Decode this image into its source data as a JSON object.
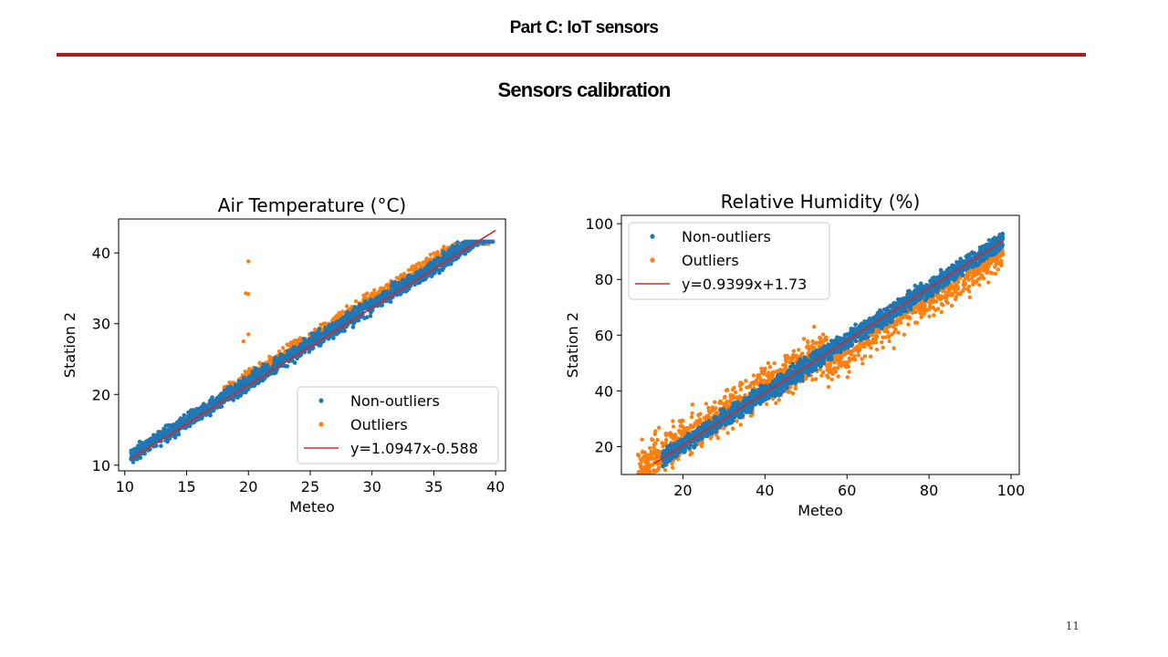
{
  "slide": {
    "title": "Part C: IoT sensors",
    "subtitle": "Sensors calibration",
    "page_number": "11"
  },
  "colors": {
    "non_outliers": "#1f77b4",
    "outliers": "#ff7f0e",
    "fit_line": "#d62728",
    "rule": "#b01c1c"
  },
  "chart_data": [
    {
      "type": "scatter",
      "title": "Air Temperature (°C)",
      "xlabel": "Meteo",
      "ylabel": "Station 2",
      "xlim": [
        9.5,
        40.8
      ],
      "ylim": [
        9.2,
        44.8
      ],
      "xticks": [
        10,
        15,
        20,
        25,
        30,
        35,
        40
      ],
      "yticks": [
        10,
        20,
        30,
        40
      ],
      "grid": false,
      "legend_position": "lower-right",
      "series": [
        {
          "name": "Non-outliers",
          "color": "#1f77b4",
          "x_range": [
            10.5,
            39.8
          ],
          "band_width": 1.6
        },
        {
          "name": "Outliers",
          "color": "#ff7f0e",
          "x_range": [
            18,
            39.5
          ],
          "band_width": 2.4,
          "extra_points": [
            [
              20,
              38.8
            ],
            [
              20,
              34.2
            ],
            [
              19.8,
              34.3
            ],
            [
              20,
              28.5
            ],
            [
              19.6,
              27.5
            ]
          ]
        },
        {
          "name": "y=1.0947x-0.588",
          "type": "line",
          "color": "#d62728",
          "slope": 1.0947,
          "intercept": -0.588,
          "x_range": [
            10.5,
            40
          ]
        }
      ]
    },
    {
      "type": "scatter",
      "title": "Relative Humidity (%)",
      "xlabel": "Meteo",
      "ylabel": "Station 2",
      "xlim": [
        5,
        102
      ],
      "ylim": [
        10,
        103
      ],
      "xticks": [
        20,
        40,
        60,
        80,
        100
      ],
      "yticks": [
        20,
        40,
        60,
        80,
        100
      ],
      "grid": false,
      "legend_position": "upper-left",
      "series": [
        {
          "name": "Non-outliers",
          "color": "#1f77b4",
          "x_range": [
            15,
            98
          ],
          "band_width": 4.5
        },
        {
          "name": "Outliers",
          "color": "#ff7f0e",
          "x_range": [
            9,
            98
          ],
          "band_width": 12
        },
        {
          "name": "y=0.9399x+1.73",
          "type": "line",
          "color": "#d62728",
          "slope": 0.9399,
          "intercept": 1.73,
          "x_range": [
            13,
            98
          ]
        }
      ]
    }
  ]
}
